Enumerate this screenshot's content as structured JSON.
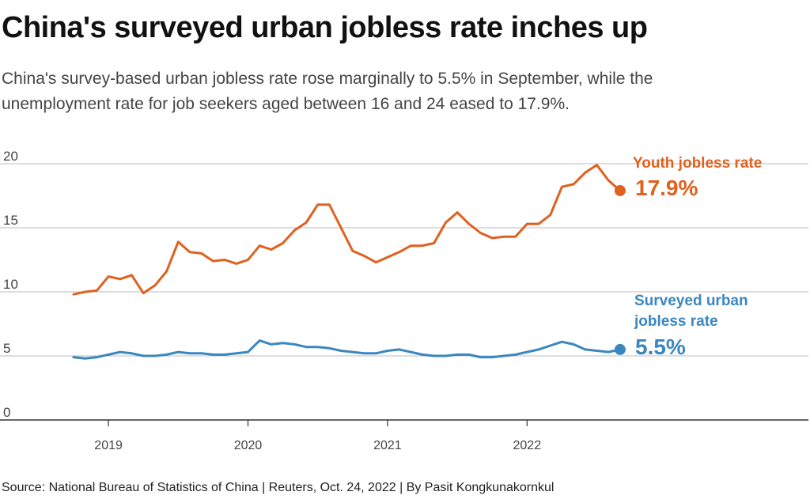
{
  "header": {
    "title": "China's surveyed urban jobless rate inches up",
    "subtitle": "China's survey-based urban jobless rate rose marginally to 5.5% in September, while the unemployment rate for job seekers aged between 16 and 24 eased to 17.9%."
  },
  "footer": {
    "source": "Source: National Bureau of Statistics of China | Reuters, Oct. 24, 2022 | By Pasit Kongkunakornkul"
  },
  "colors": {
    "youth": "#e0601f",
    "urban": "#3a87c0",
    "grid": "#bdbdbd",
    "axis": "#333333"
  },
  "chart_data": {
    "type": "line",
    "title": "China's surveyed urban jobless rate inches up",
    "xlabel": "",
    "ylabel": "",
    "ylim": [
      0,
      20
    ],
    "yticks": [
      0,
      5,
      10,
      15,
      20
    ],
    "xticks": [
      "2019",
      "2020",
      "2021",
      "2022"
    ],
    "x": [
      "2018-10",
      "2018-11",
      "2018-12",
      "2019-01",
      "2019-02",
      "2019-03",
      "2019-04",
      "2019-05",
      "2019-06",
      "2019-07",
      "2019-08",
      "2019-09",
      "2019-10",
      "2019-11",
      "2019-12",
      "2020-01",
      "2020-02",
      "2020-03",
      "2020-04",
      "2020-05",
      "2020-06",
      "2020-07",
      "2020-08",
      "2020-09",
      "2020-10",
      "2020-11",
      "2020-12",
      "2021-01",
      "2021-02",
      "2021-03",
      "2021-04",
      "2021-05",
      "2021-06",
      "2021-07",
      "2021-08",
      "2021-09",
      "2021-10",
      "2021-11",
      "2021-12",
      "2022-01",
      "2022-02",
      "2022-03",
      "2022-04",
      "2022-05",
      "2022-06",
      "2022-07",
      "2022-08",
      "2022-09"
    ],
    "grid": true,
    "legend": "direct labels at line ends",
    "series": [
      {
        "name": "Youth jobless rate",
        "end_label": "17.9%",
        "color": "#e0601f",
        "values": [
          9.8,
          10.0,
          10.1,
          11.2,
          11.0,
          11.3,
          9.9,
          10.5,
          11.6,
          13.9,
          13.1,
          13.0,
          12.4,
          12.5,
          12.2,
          12.5,
          13.6,
          13.3,
          13.8,
          14.8,
          15.4,
          16.8,
          16.8,
          15.0,
          13.2,
          12.8,
          12.3,
          12.7,
          13.1,
          13.6,
          13.6,
          13.8,
          15.4,
          16.2,
          15.3,
          14.6,
          14.2,
          14.3,
          14.3,
          15.3,
          15.3,
          16.0,
          18.2,
          18.4,
          19.3,
          19.9,
          18.7,
          17.9
        ]
      },
      {
        "name": "Surveyed urban jobless rate",
        "end_label": "5.5%",
        "color": "#3a87c0",
        "values": [
          4.9,
          4.8,
          4.9,
          5.1,
          5.3,
          5.2,
          5.0,
          5.0,
          5.1,
          5.3,
          5.2,
          5.2,
          5.1,
          5.1,
          5.2,
          5.3,
          6.2,
          5.9,
          6.0,
          5.9,
          5.7,
          5.7,
          5.6,
          5.4,
          5.3,
          5.2,
          5.2,
          5.4,
          5.5,
          5.3,
          5.1,
          5.0,
          5.0,
          5.1,
          5.1,
          4.9,
          4.9,
          5.0,
          5.1,
          5.3,
          5.5,
          5.8,
          6.1,
          5.9,
          5.5,
          5.4,
          5.3,
          5.5
        ]
      }
    ]
  }
}
